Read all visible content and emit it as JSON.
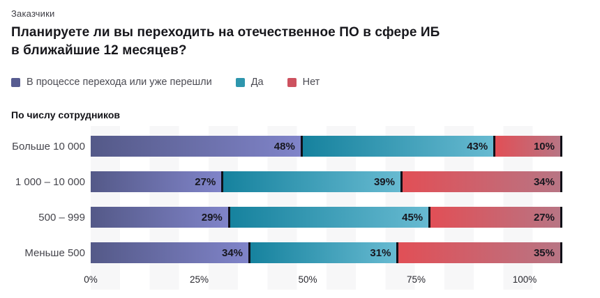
{
  "eyebrow": "Заказчики",
  "title": {
    "line1": "Планируете ли вы переходить на отечественное ПО в сфере ИБ",
    "line2": "в ближайшие 12 месяцев?"
  },
  "legend": [
    {
      "label": "В процессе перехода или уже перешли",
      "swatch": "#575c91"
    },
    {
      "label": "Да",
      "swatch": "#2e96ad"
    },
    {
      "label": "Нет",
      "swatch": "#cd525f"
    }
  ],
  "section_label": "По числу сотрудников",
  "chart_data": {
    "type": "bar",
    "orientation": "horizontal-stacked",
    "title": "Планируете ли вы переходить на отечественное ПО в сфере ИБ в ближайшие 12 месяцев?",
    "categories": [
      "Больше 10 000",
      "1 000 – 10 000",
      "500 – 999",
      "Меньше 500"
    ],
    "series": [
      {
        "name": "В процессе перехода или уже перешли",
        "values": [
          48,
          27,
          29,
          34
        ],
        "gradient": [
          "#545988",
          "#8084c9"
        ]
      },
      {
        "name": "Да",
        "values": [
          43,
          39,
          45,
          31
        ],
        "gradient": [
          "#16829e",
          "#67bad1"
        ]
      },
      {
        "name": "Нет",
        "values": [
          10,
          34,
          27,
          35
        ],
        "gradient": [
          "#e14f56",
          "#b87584"
        ]
      }
    ],
    "value_suffix": "%",
    "xlim": [
      0,
      100
    ],
    "x_ticks": [
      {
        "pos": 0,
        "label": "0%"
      },
      {
        "pos": 25,
        "label": "25%"
      },
      {
        "pos": 50,
        "label": "50%"
      },
      {
        "pos": 75,
        "label": "75%"
      },
      {
        "pos": 100,
        "label": "100%"
      }
    ],
    "separator_color": "#101018",
    "grid": "vertical-bands",
    "legend_position": "top"
  }
}
